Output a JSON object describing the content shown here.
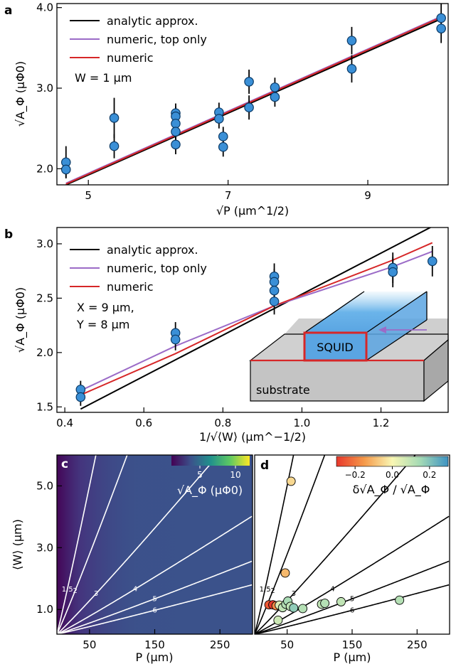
{
  "chart_data": [
    {
      "panel": "a",
      "type": "scatter",
      "xlabel": "√P (µm^1/2)",
      "ylabel": "√A_Φ (µΦ0)",
      "xlim": [
        4.55,
        10.15
      ],
      "ylim": [
        1.8,
        4.05
      ],
      "xticks": [
        5,
        7,
        9
      ],
      "yticks": [
        2.0,
        3.0,
        4.0
      ],
      "annotation": "W = 1 µm",
      "legend": [
        "analytic approx.",
        "numeric, top only",
        "numeric"
      ],
      "lines": [
        {
          "name": "analytic approx.",
          "color": "#000000",
          "x": [
            4.68,
            10.05
          ],
          "y": [
            1.8,
            3.86
          ]
        },
        {
          "name": "numeric, top only",
          "color": "#9b6bc7",
          "x": [
            4.68,
            10.05
          ],
          "y": [
            1.82,
            3.89
          ]
        },
        {
          "name": "numeric",
          "color": "#d62728",
          "x": [
            4.68,
            10.05
          ],
          "y": [
            1.81,
            3.88
          ]
        }
      ],
      "points": [
        {
          "x": 4.68,
          "y": 2.08,
          "err": 0.2
        },
        {
          "x": 4.68,
          "y": 1.99,
          "err": 0.1
        },
        {
          "x": 5.37,
          "y": 2.63,
          "err": 0.25
        },
        {
          "x": 5.37,
          "y": 2.28,
          "err": 0.15
        },
        {
          "x": 6.25,
          "y": 2.69,
          "err": 0.12
        },
        {
          "x": 6.25,
          "y": 2.65,
          "err": 0.12
        },
        {
          "x": 6.25,
          "y": 2.56,
          "err": 0.12
        },
        {
          "x": 6.25,
          "y": 2.46,
          "err": 0.12
        },
        {
          "x": 6.25,
          "y": 2.3,
          "err": 0.12
        },
        {
          "x": 6.87,
          "y": 2.7,
          "err": 0.12
        },
        {
          "x": 6.87,
          "y": 2.62,
          "err": 0.12
        },
        {
          "x": 6.93,
          "y": 2.4,
          "err": 0.12
        },
        {
          "x": 6.93,
          "y": 2.27,
          "err": 0.12
        },
        {
          "x": 7.3,
          "y": 3.08,
          "err": 0.15
        },
        {
          "x": 7.3,
          "y": 2.76,
          "err": 0.15
        },
        {
          "x": 7.67,
          "y": 3.01,
          "err": 0.12
        },
        {
          "x": 7.67,
          "y": 2.89,
          "err": 0.12
        },
        {
          "x": 8.77,
          "y": 3.59,
          "err": 0.17
        },
        {
          "x": 8.77,
          "y": 3.24,
          "err": 0.17
        },
        {
          "x": 10.05,
          "y": 3.87,
          "err": 0.18
        },
        {
          "x": 10.05,
          "y": 3.74,
          "err": 0.18
        }
      ]
    },
    {
      "panel": "b",
      "type": "scatter",
      "xlabel": "1/√⟨W⟩ (µm^−1/2)",
      "ylabel": "√A_Φ (µΦ0)",
      "xlim": [
        0.38,
        1.37
      ],
      "ylim": [
        1.45,
        3.15
      ],
      "xticks": [
        0.4,
        0.6,
        0.8,
        1.0,
        1.2
      ],
      "yticks": [
        1.5,
        2.0,
        2.5,
        3.0
      ],
      "annotation": [
        "X = 9 µm,",
        "Y = 8 µm"
      ],
      "legend": [
        "analytic approx.",
        "numeric, top only",
        "numeric"
      ],
      "inset_labels": [
        "SQUID",
        "substrate"
      ],
      "lines": [
        {
          "name": "analytic approx.",
          "color": "#000000",
          "x": [
            0.44,
            1.33
          ],
          "y": [
            1.48,
            3.16
          ]
        },
        {
          "name": "numeric, top only",
          "color": "#9b6bc7",
          "x": [
            0.44,
            0.68,
            0.93,
            1.23,
            1.33
          ],
          "y": [
            1.65,
            2.06,
            2.43,
            2.79,
            2.93
          ]
        },
        {
          "name": "numeric",
          "color": "#d62728",
          "x": [
            0.44,
            0.68,
            0.93,
            1.23,
            1.33
          ],
          "y": [
            1.61,
            1.99,
            2.43,
            2.85,
            3.01
          ]
        }
      ],
      "points": [
        {
          "x": 0.44,
          "y": 1.66,
          "err": 0.08
        },
        {
          "x": 0.44,
          "y": 1.59,
          "err": 0.08
        },
        {
          "x": 0.68,
          "y": 2.18,
          "err": 0.1
        },
        {
          "x": 0.68,
          "y": 2.12,
          "err": 0.1
        },
        {
          "x": 0.93,
          "y": 2.7,
          "err": 0.12
        },
        {
          "x": 0.93,
          "y": 2.65,
          "err": 0.12
        },
        {
          "x": 0.93,
          "y": 2.57,
          "err": 0.12
        },
        {
          "x": 0.93,
          "y": 2.47,
          "err": 0.12
        },
        {
          "x": 1.23,
          "y": 2.78,
          "err": 0.14
        },
        {
          "x": 1.23,
          "y": 2.74,
          "err": 0.14
        },
        {
          "x": 1.33,
          "y": 2.84,
          "err": 0.14
        }
      ]
    },
    {
      "panel": "c",
      "type": "heatmap",
      "xlabel": "P (µm)",
      "ylabel": "⟨W⟩ (µm)",
      "xlim": [
        0,
        300
      ],
      "ylim": [
        0.2,
        6.0
      ],
      "xticks": [
        50,
        150,
        250
      ],
      "yticks": [
        1.0,
        3.0,
        5.0
      ],
      "colorbar": {
        "label": "√A_Φ (µΦ0)",
        "ticks": [
          5,
          10
        ],
        "range": [
          1,
          12
        ]
      },
      "contours": [
        1.5,
        2,
        3,
        4,
        5,
        6
      ]
    },
    {
      "panel": "d",
      "type": "scatter",
      "xlabel": "P (µm)",
      "xlim": [
        0,
        300
      ],
      "ylim": [
        0.2,
        6.0
      ],
      "xticks": [
        50,
        150,
        250
      ],
      "colorbar": {
        "label": "δ√A_Φ / √A_Φ",
        "ticks": [
          -0.2,
          0.0,
          0.2
        ],
        "range": [
          -0.3,
          0.3
        ]
      },
      "contours": [
        1.5,
        2,
        3,
        4,
        5,
        6
      ],
      "points": [
        {
          "x": 56,
          "y": 5.15,
          "dev": -0.05
        },
        {
          "x": 47,
          "y": 2.18,
          "dev": -0.1
        },
        {
          "x": 22,
          "y": 1.15,
          "dev": -0.25
        },
        {
          "x": 28,
          "y": 1.15,
          "dev": -0.3
        },
        {
          "x": 33,
          "y": 1.12,
          "dev": -0.18
        },
        {
          "x": 38,
          "y": 1.14,
          "dev": 0.05
        },
        {
          "x": 43,
          "y": 1.06,
          "dev": 0.1
        },
        {
          "x": 48,
          "y": 1.17,
          "dev": 0.12
        },
        {
          "x": 51,
          "y": 1.27,
          "dev": 0.14
        },
        {
          "x": 55,
          "y": 1.1,
          "dev": 0.1
        },
        {
          "x": 60,
          "y": 1.05,
          "dev": 0.18
        },
        {
          "x": 74,
          "y": 1.03,
          "dev": 0.12
        },
        {
          "x": 103,
          "y": 1.17,
          "dev": 0.1
        },
        {
          "x": 108,
          "y": 1.2,
          "dev": 0.12
        },
        {
          "x": 133,
          "y": 1.25,
          "dev": 0.1
        },
        {
          "x": 223,
          "y": 1.3,
          "dev": 0.12
        },
        {
          "x": 36,
          "y": 0.65,
          "dev": 0.08
        }
      ]
    }
  ]
}
